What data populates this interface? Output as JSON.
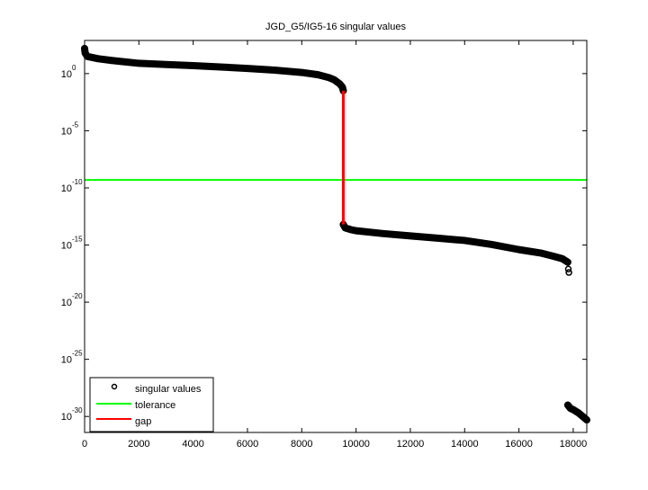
{
  "chart_data": {
    "type": "scatter",
    "title": "JGD_G5/IG5-16 singular values",
    "xlabel": "",
    "ylabel": "",
    "xlim": [
      0,
      18500
    ],
    "ylim_log10": [
      -31.4,
      2.9
    ],
    "yscale": "log",
    "grid": false,
    "legend_position": "bottom-left",
    "xticks": [
      0,
      2000,
      4000,
      6000,
      8000,
      10000,
      12000,
      14000,
      16000,
      18000
    ],
    "yticks_exponent": [
      0,
      -5,
      -10,
      -15,
      -20,
      -25,
      -30
    ],
    "ytick_base": "10",
    "series": [
      {
        "name": "singular values",
        "marker": "circle",
        "color": "#000000",
        "segments": [
          {
            "x": [
              0,
              20,
              100,
              500,
              1000,
              2000,
              3000,
              4000,
              5000,
              6000,
              7000,
              8000,
              8600,
              9000,
              9200,
              9400,
              9500,
              9530
            ],
            "log10_y": [
              2.2,
              1.8,
              1.5,
              1.3,
              1.15,
              0.9,
              0.8,
              0.7,
              0.58,
              0.45,
              0.3,
              0.1,
              -0.1,
              -0.35,
              -0.55,
              -0.9,
              -1.2,
              -1.5
            ]
          },
          {
            "x": [
              9530,
              9600,
              9800,
              10000,
              11000,
              12000,
              13000,
              14000,
              15000,
              16000,
              16800,
              17300,
              17600,
              17800
            ],
            "log10_y": [
              -13.2,
              -13.5,
              -13.65,
              -13.75,
              -14.0,
              -14.2,
              -14.4,
              -14.6,
              -14.95,
              -15.4,
              -15.7,
              -16.0,
              -16.2,
              -16.5
            ]
          },
          {
            "x": [
              17820,
              17840
            ],
            "log10_y": [
              -17.1,
              -17.4
            ]
          },
          {
            "x": [
              17800,
              17900,
              18000,
              18100,
              18200,
              18300,
              18400,
              18500
            ],
            "log10_y": [
              -29.0,
              -29.3,
              -29.4,
              -29.55,
              -29.7,
              -29.9,
              -30.1,
              -30.3
            ]
          }
        ]
      },
      {
        "name": "tolerance",
        "color": "#00ff00",
        "log10_y": -9.3
      },
      {
        "name": "gap",
        "color": "#ff0000",
        "x": 9530,
        "log10_y_range": [
          -1.5,
          -13.2
        ]
      }
    ]
  }
}
